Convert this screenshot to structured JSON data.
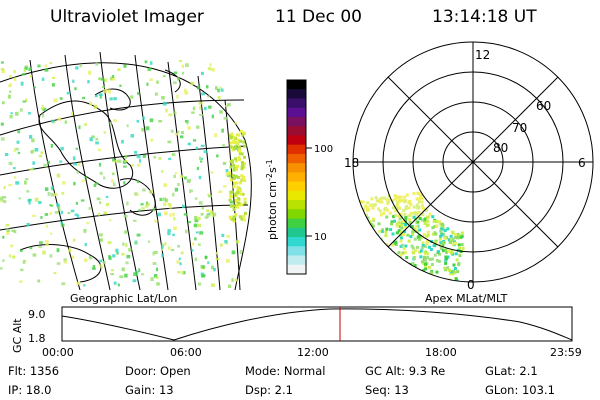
{
  "header": {
    "instrument": "Ultraviolet Imager",
    "date": "11 Dec 00",
    "time": "13:14:18 UT"
  },
  "colorbar": {
    "unit_label": "photon cm",
    "exp1": "-2",
    "mid": "s",
    "exp2": "-1",
    "ticks": [
      "100",
      "10"
    ],
    "colors": [
      "#000000",
      "#1a0a3a",
      "#3a0f6a",
      "#5a1090",
      "#7a1060",
      "#9a0c30",
      "#c00010",
      "#e03000",
      "#f06000",
      "#f89000",
      "#ffb000",
      "#ffd000",
      "#e8e800",
      "#b8e000",
      "#80d800",
      "#40d040",
      "#20c890",
      "#30d8d0",
      "#80e0e8",
      "#c0ecf0",
      "#f0f4f4"
    ]
  },
  "panels": {
    "geo_label": "Geographic Lat/Lon",
    "apex_label": "Apex MLat/MLT"
  },
  "polar": {
    "mlt_labels": {
      "top": "12",
      "left": "18",
      "right": "6",
      "bottom": "0"
    },
    "lat_labels": [
      "60",
      "70",
      "80"
    ]
  },
  "altitude_plot": {
    "axis_title": "GC Alt",
    "ymax": "9.0",
    "ymin": "1.8",
    "x_ticks": [
      "00:00",
      "06:00",
      "12:00",
      "18:00",
      "23:59"
    ],
    "current_time_color": "#c00000"
  },
  "info": {
    "row1": {
      "flt": "Flt: 1356",
      "door": "Door: Open",
      "mode": "Mode: Normal",
      "gcalt": "GC Alt: 9.3 Re",
      "glat": "GLat:    2.1"
    },
    "row2": {
      "ip": "IP: 18.0",
      "gain": "Gain: 13",
      "dsp": "Dsp:      2.1",
      "seq": "Seq: 13",
      "glon": "GLon: 103.1"
    }
  }
}
